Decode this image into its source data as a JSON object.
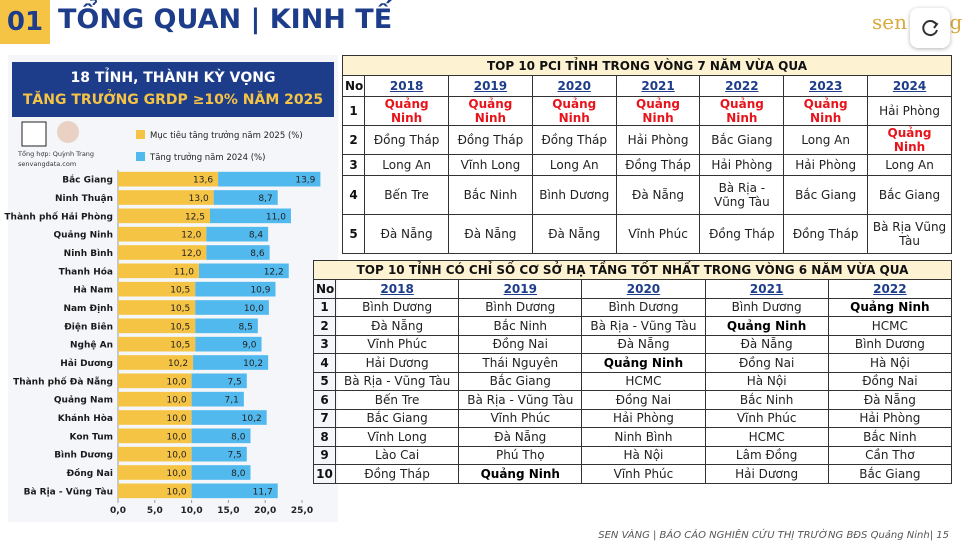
{
  "header": {
    "number": "01",
    "title": "TỔNG QUAN | KINH TẾ",
    "logo": "sen vàng"
  },
  "chart_data": {
    "type": "stacked-bar-horizontal",
    "title": [
      "18 TỈNH, THÀNH KỲ VỌNG",
      "TĂNG TRƯỞNG GRDP ≥10% NĂM 2025"
    ],
    "credit": [
      "Tổng hợp: Quỳnh Trang",
      "senvangdata.com"
    ],
    "categories": [
      "Bắc Giang",
      "Ninh Thuận",
      "Thành phố Hải Phòng",
      "Quảng Ninh",
      "Ninh Bình",
      "Thanh Hóa",
      "Hà Nam",
      "Nam Định",
      "Điện Biên",
      "Nghệ An",
      "Hải Dương",
      "Thành phố Đà Nẵng",
      "Quảng Nam",
      "Khánh Hòa",
      "Kon Tum",
      "Bình Dương",
      "Đồng Nai",
      "Bà Rịa - Vũng Tàu"
    ],
    "series": [
      {
        "name": "Mục tiêu tăng trưởng năm 2025 (%)",
        "color": "#f6c445",
        "values": [
          13.6,
          13.0,
          12.5,
          12.0,
          12.0,
          11.0,
          10.5,
          10.5,
          10.5,
          10.5,
          10.2,
          10.0,
          10.0,
          10.0,
          10.0,
          10.0,
          10.0,
          10.0
        ],
        "value_labels": [
          "13,6",
          "13,0",
          "12,5",
          "12,0",
          "12,0",
          "11,0",
          "10,5",
          "10,5",
          "10,5",
          "10,5",
          "10,2",
          "10,0",
          "10,0",
          "10,0",
          "10,0",
          "10,0",
          "10,0",
          "10,0"
        ]
      },
      {
        "name": "Tăng trưởng năm 2024 (%)",
        "color": "#52b9ef",
        "values": [
          13.9,
          8.7,
          11.0,
          8.4,
          8.6,
          12.2,
          10.9,
          10.0,
          8.5,
          9.0,
          10.2,
          7.5,
          7.1,
          10.2,
          8.0,
          7.5,
          8.0,
          11.7
        ],
        "value_labels": [
          "13,9",
          "8,7",
          "11,0",
          "8,4",
          "8,6",
          "12,2",
          "10,9",
          "10,0",
          "8,5",
          "9,0",
          "10,2",
          "7,5",
          "7,1",
          "10,2",
          "8,0",
          "7,5",
          "8,0",
          "11,7"
        ]
      }
    ],
    "xlim": [
      0,
      25
    ],
    "xticks": [
      {
        "value": 0,
        "label": "0,0"
      },
      {
        "value": 5,
        "label": "5,0"
      },
      {
        "value": 10,
        "label": "10,0"
      },
      {
        "value": 15,
        "label": "15,0"
      },
      {
        "value": 20,
        "label": "20,0"
      },
      {
        "value": 25,
        "label": "25,0"
      }
    ]
  },
  "pci_table": {
    "title": "TOP 10 PCI TỈNH TRONG VÒNG 7 NĂM VỪA QUA",
    "highlight": "Quảng Ninh",
    "highlight_color": "#e8141c",
    "columns": [
      "No",
      "2018",
      "2019",
      "2020",
      "2021",
      "2022",
      "2023",
      "2024"
    ],
    "rows": [
      [
        "1",
        "Quảng Ninh",
        "Quảng Ninh",
        "Quảng Ninh",
        "Quảng Ninh",
        "Quảng Ninh",
        "Quảng Ninh",
        "Hải Phòng"
      ],
      [
        "2",
        "Đồng Tháp",
        "Đồng Tháp",
        "Đồng Tháp",
        "Hải Phòng",
        "Bắc Giang",
        "Long An",
        "Quảng Ninh"
      ],
      [
        "3",
        "Long An",
        "Vĩnh Long",
        "Long An",
        "Đồng Tháp",
        "Hải Phòng",
        "Hải Phòng",
        "Long An"
      ],
      [
        "4",
        "Bến Tre",
        "Bắc Ninh",
        "Bình Dương",
        "Đà Nẵng",
        "Bà Rịa - Vũng Tàu",
        "Bắc Giang",
        "Bắc Giang"
      ],
      [
        "5",
        "Đà Nẵng",
        "Đà Nẵng",
        "Đà Nẵng",
        "Vĩnh Phúc",
        "Đồng Tháp",
        "Đồng Tháp",
        "Bà Rịa Vũng Tàu"
      ]
    ]
  },
  "infra_table": {
    "title": "TOP 10 TỈNH CÓ CHỈ SỐ CƠ SỞ HẠ TẦNG TỐT NHẤT TRONG VÒNG 6 NĂM VỪA QUA",
    "highlight": "Quảng Ninh",
    "highlight_color": "#000000",
    "columns": [
      "No",
      "2018",
      "2019",
      "2020",
      "2021",
      "2022"
    ],
    "rows": [
      [
        "1",
        "Bình Dương",
        "Bình Dương",
        "Bình Dương",
        "Bình Dương",
        "Quảng Ninh"
      ],
      [
        "2",
        "Đà Nẵng",
        "Bắc Ninh",
        "Bà Rịa - Vũng Tàu",
        "Quảng Ninh",
        "HCMC"
      ],
      [
        "3",
        "Vĩnh Phúc",
        "Đồng Nai",
        "Đà Nẵng",
        "Đà Nẵng",
        "Bình Dương"
      ],
      [
        "4",
        "Hải Dương",
        "Thái Nguyên",
        "Quảng Ninh",
        "Đồng Nai",
        "Hà Nội"
      ],
      [
        "5",
        "Bà Rịa - Vũng Tàu",
        "Bắc Giang",
        "HCMC",
        "Hà Nội",
        "Đồng Nai"
      ],
      [
        "6",
        "Bến Tre",
        "Bà Rịa - Vũng Tàu",
        "Đồng Nai",
        "Bắc Ninh",
        "Đà Nẵng"
      ],
      [
        "7",
        "Bắc Giang",
        "Vĩnh Phúc",
        "Hải Phòng",
        "Vĩnh Phúc",
        "Hải Phòng"
      ],
      [
        "8",
        "Vĩnh Long",
        "Đà Nẵng",
        "Ninh Bình",
        "HCMC",
        "Bắc Ninh"
      ],
      [
        "9",
        "Lào Cai",
        "Phú Thọ",
        "Hà Nội",
        "Lâm Đồng",
        "Cần Thơ"
      ],
      [
        "10",
        "Đồng Tháp",
        "Quảng Ninh",
        "Vĩnh Phúc",
        "Hải Dương",
        "Bắc Giang"
      ]
    ]
  },
  "footer": "SEN VÀNG | BÁO CÁO NGHIÊN CỨU THỊ TRƯỜNG BĐS Quảng Ninh| 15"
}
